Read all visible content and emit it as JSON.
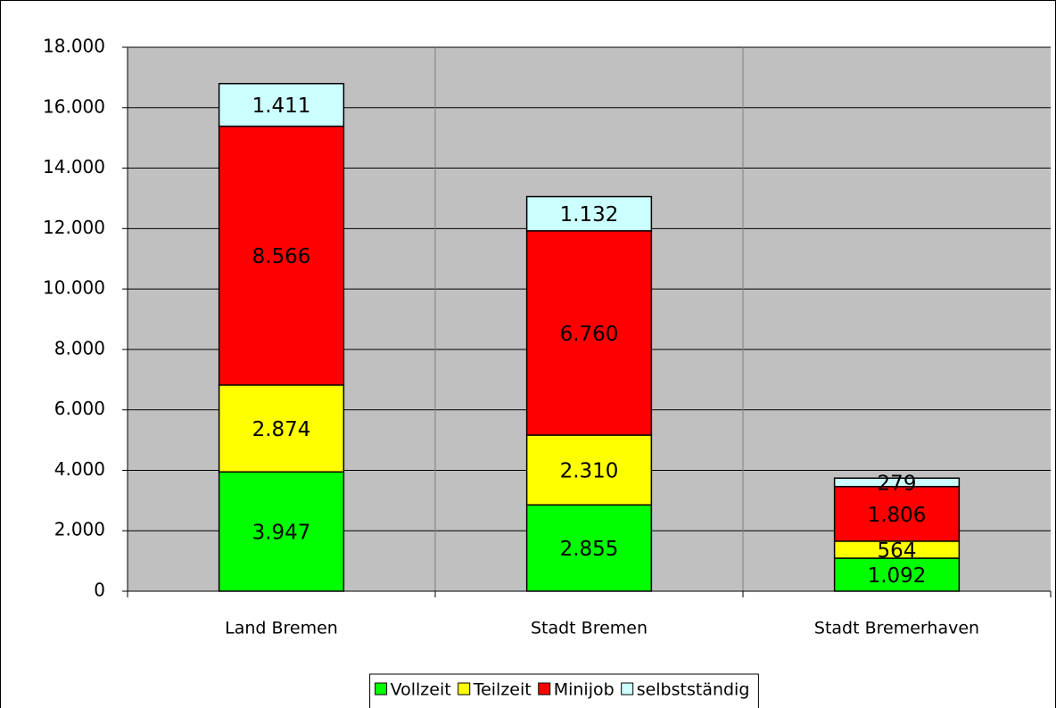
{
  "chart_data": {
    "type": "stacked_bar",
    "categories": [
      "Land Bremen",
      "Stadt Bremen",
      "Stadt Bremerhaven"
    ],
    "series": [
      {
        "name": "Vollzeit",
        "color": "#00ff00",
        "values": [
          3947,
          2855,
          1092
        ],
        "value_labels": [
          "3.947",
          "2.855",
          "1.092"
        ]
      },
      {
        "name": "Teilzeit",
        "color": "#ffff00",
        "values": [
          2874,
          2310,
          564
        ],
        "value_labels": [
          "2.874",
          "2.310",
          "564"
        ]
      },
      {
        "name": "Minijob",
        "color": "#ff0000",
        "values": [
          8566,
          6760,
          1806
        ],
        "value_labels": [
          "8.566",
          "6.760",
          "1.806"
        ]
      },
      {
        "name": "selbstständig",
        "color": "#ccffff",
        "values": [
          1411,
          1132,
          279
        ],
        "value_labels": [
          "1.411",
          "1.132",
          "279"
        ]
      }
    ],
    "ylim": [
      0,
      18000
    ],
    "yticks": [
      0,
      {
        "value": 2000,
        "label": "2.000"
      },
      {
        "value": 4000,
        "label": "4.000"
      },
      {
        "value": 6000,
        "label": "6.000"
      },
      {
        "value": 8000,
        "label": "8.000"
      },
      {
        "value": 10000,
        "label": "10.000"
      },
      {
        "value": 12000,
        "label": "12.000"
      },
      {
        "value": 14000,
        "label": "14.000"
      },
      {
        "value": 16000,
        "label": "16.000"
      },
      {
        "value": 18000,
        "label": "18.000"
      }
    ],
    "grid": true,
    "legend": "bottom"
  }
}
